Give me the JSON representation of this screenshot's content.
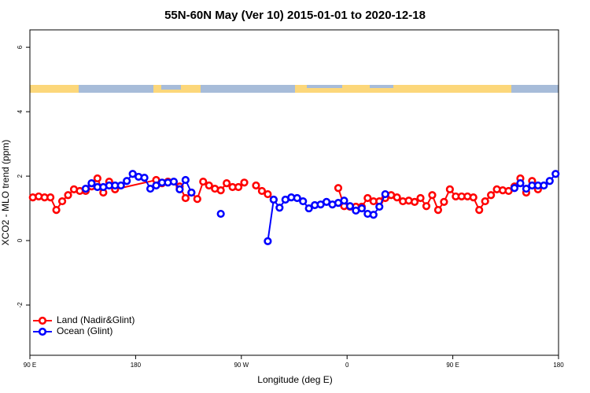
{
  "chart_data": {
    "type": "line",
    "title": "55N-60N May (Ver 10)   2015-01-01 to 2020-12-18",
    "x_label": "Longitude (deg E)",
    "y_label": "XCO2 - MLO trend (ppm)",
    "xlim": [
      90,
      540
    ],
    "xticks": [
      {
        "value": 90,
        "label": "90 E"
      },
      180,
      {
        "value": 270,
        "label": "90 W"
      },
      {
        "value": 360,
        "label": "0"
      },
      {
        "value": 450,
        "label": "90 E"
      },
      {
        "value": 540,
        "label": "180"
      }
    ],
    "ylim": [
      -3.56,
      6.54
    ],
    "yticks": [
      -2,
      0,
      2,
      4,
      6
    ],
    "legend": "bottomleft",
    "series": [
      {
        "name": "Land (Nadir&Glint)",
        "color": "#ff0000",
        "x": [
          92.5,
          97.5,
          102.5,
          107.5,
          112.5,
          117.5,
          122.5,
          127.5,
          132.5,
          137.5,
          142.5,
          147.5,
          152.5,
          157.5,
          162.5,
          197.5,
          202.5,
          207.5,
          217.5,
          222.5,
          227.5,
          232.5,
          237.5,
          242.5,
          247.5,
          252.5,
          257.5,
          262.5,
          267.5,
          272.5,
          277.5,
          282.5,
          287.5,
          292.5,
          297.5,
          302.5,
          352.5,
          357.5,
          362.5,
          367.5,
          372.5,
          377.5,
          382.5,
          387.5,
          392.5,
          397.5,
          402.5,
          407.5,
          412.5,
          417.5,
          422.5,
          427.5,
          432.5,
          437.5,
          442.5,
          447.5,
          452.5,
          457.5,
          462.5,
          467.5,
          472.5,
          477.5,
          482.5,
          487.5,
          492.5,
          497.5,
          502.5,
          507.5,
          512.5,
          517.5,
          522.5
        ],
        "values": [
          1.34,
          1.37,
          1.34,
          1.34,
          0.95,
          1.22,
          1.41,
          1.59,
          1.54,
          1.54,
          1.68,
          1.93,
          1.49,
          1.83,
          1.59,
          1.88,
          1.78,
          1.83,
          1.68,
          1.32,
          1.49,
          1.29,
          1.83,
          1.71,
          1.61,
          1.56,
          1.78,
          1.66,
          1.66,
          1.8,
          null,
          1.71,
          1.54,
          1.44,
          1.27,
          null,
          1.63,
          1.07,
          1.05,
          1.05,
          1.05,
          1.32,
          1.22,
          1.22,
          1.32,
          1.41,
          1.34,
          1.22,
          1.24,
          1.2,
          1.32,
          1.07,
          1.41,
          0.95,
          1.2,
          1.59,
          1.37,
          1.37,
          1.37,
          1.34,
          0.95,
          1.22,
          1.41,
          1.59,
          1.56,
          1.54,
          1.68,
          1.93,
          1.49,
          1.85,
          1.59
        ]
      },
      {
        "name": "Ocean (Glint)",
        "color": "#0000ff",
        "x": [
          137.5,
          142.5,
          147.5,
          152.5,
          157.5,
          162.5,
          167.5,
          172.5,
          177.5,
          182.5,
          187.5,
          192.5,
          197.5,
          202.5,
          207.5,
          212.5,
          217.5,
          222.5,
          227.5,
          232.5,
          252.5,
          257.5,
          292.5,
          297.5,
          302.5,
          307.5,
          312.5,
          317.5,
          322.5,
          327.5,
          332.5,
          337.5,
          342.5,
          347.5,
          352.5,
          357.5,
          362.5,
          367.5,
          372.5,
          377.5,
          382.5,
          387.5,
          392.5,
          397.5,
          502.5,
          507.5,
          512.5,
          517.5,
          522.5,
          527.5,
          532.5,
          537.5
        ],
        "values": [
          1.61,
          1.78,
          1.66,
          1.66,
          1.71,
          1.71,
          1.71,
          1.85,
          2.07,
          1.98,
          1.95,
          1.61,
          1.71,
          1.8,
          1.8,
          1.83,
          1.59,
          1.88,
          1.49,
          null,
          0.83,
          null,
          -0.02,
          1.27,
          1.02,
          1.27,
          1.34,
          1.32,
          1.22,
          1.0,
          1.1,
          1.12,
          1.2,
          1.12,
          1.17,
          1.24,
          1.07,
          0.93,
          1.0,
          0.83,
          0.8,
          1.05,
          1.44,
          null,
          1.63,
          1.78,
          1.61,
          1.71,
          1.71,
          1.71,
          1.85,
          2.07
        ]
      }
    ]
  }
}
